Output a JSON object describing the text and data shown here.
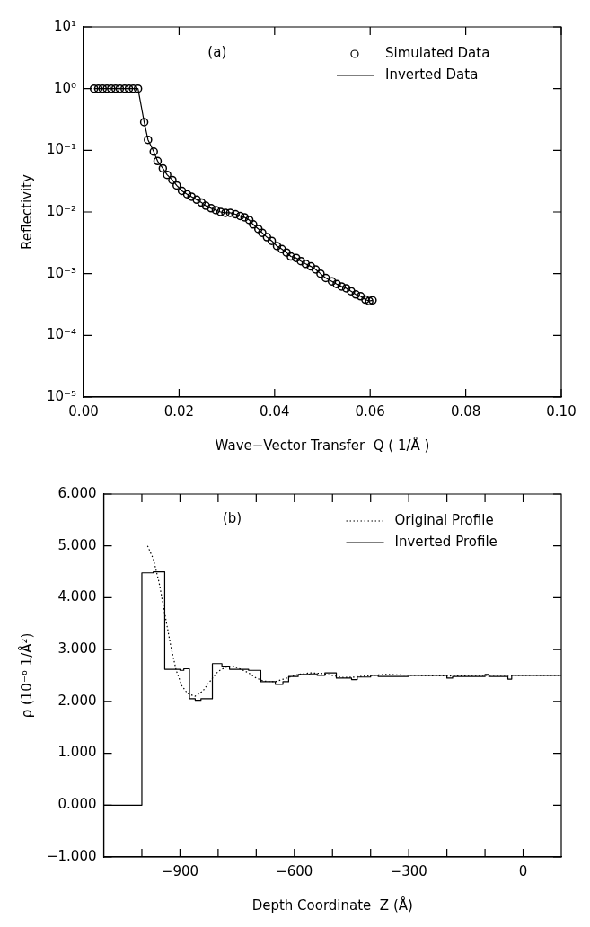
{
  "chart_data": [
    {
      "type": "scatter",
      "xlabel": "Wave−Vector Transfer  Q ( 1/Å )",
      "ylabel": "Reflectivity",
      "annotations": [
        "(a)"
      ],
      "log": "y",
      "grid": false,
      "legend": "top right",
      "xlim": [
        0,
        0.1
      ],
      "xticks": [
        {
          "value": 0,
          "label": "0.00"
        },
        {
          "value": 0.02,
          "label": "0.02"
        },
        {
          "value": 0.04,
          "label": "0.04"
        },
        {
          "value": 0.06,
          "label": "0.06"
        },
        {
          "value": 0.08,
          "label": "0.08"
        },
        {
          "value": 0.1,
          "label": "0.10"
        }
      ],
      "ylim": [
        1e-05,
        10
      ],
      "yticks": [
        {
          "value": 1e-05,
          "label": "10⁻⁵"
        },
        {
          "value": 0.0001,
          "label": "10⁻⁴"
        },
        {
          "value": 0.001,
          "label": "10⁻³"
        },
        {
          "value": 0.01,
          "label": "10⁻²"
        },
        {
          "value": 0.1,
          "label": "10⁻¹"
        },
        {
          "value": 1,
          "label": "10⁰"
        },
        {
          "value": 10,
          "label": "10¹"
        }
      ],
      "x": [
        0.0022,
        0.0031,
        0.004,
        0.0049,
        0.0058,
        0.0067,
        0.0076,
        0.0086,
        0.0095,
        0.0104,
        0.0114,
        0.0127,
        0.0135,
        0.0147,
        0.0155,
        0.0166,
        0.0175,
        0.0186,
        0.0195,
        0.0206,
        0.0217,
        0.0226,
        0.0237,
        0.0247,
        0.0256,
        0.0267,
        0.0277,
        0.0287,
        0.0297,
        0.0307,
        0.0318,
        0.0328,
        0.0337,
        0.0347,
        0.0355,
        0.0366,
        0.0374,
        0.0384,
        0.0394,
        0.0405,
        0.0415,
        0.0425,
        0.0434,
        0.0445,
        0.0455,
        0.0465,
        0.0476,
        0.0486,
        0.0496,
        0.0507,
        0.052,
        0.053,
        0.054,
        0.055,
        0.056,
        0.057,
        0.058,
        0.059,
        0.0598,
        0.0605
      ],
      "series": [
        {
          "name": "Simulated Data",
          "marker": "circle",
          "color": "#000000",
          "values": [
            1,
            1,
            1,
            1,
            1,
            1,
            1,
            1,
            1,
            1,
            1,
            0.286,
            0.148,
            0.095,
            0.067,
            0.051,
            0.04,
            0.033,
            0.027,
            0.022,
            0.0194,
            0.0177,
            0.0158,
            0.0142,
            0.0126,
            0.0115,
            0.0107,
            0.01,
            0.0097,
            0.0097,
            0.0092,
            0.0086,
            0.0082,
            0.0074,
            0.0063,
            0.0053,
            0.0046,
            0.0039,
            0.0034,
            0.0028,
            0.0025,
            0.0022,
            0.0019,
            0.0018,
            0.0016,
            0.00144,
            0.00131,
            0.00117,
            0.001,
            0.00085,
            0.00075,
            0.00068,
            0.00062,
            0.00058,
            0.00052,
            0.00046,
            0.00043,
            0.00038,
            0.00036,
            0.00037
          ]
        },
        {
          "name": "Inverted Data",
          "type": "line",
          "marker": "none",
          "line_style": "solid",
          "color": "#000000",
          "values": [
            1,
            1,
            1,
            1,
            1,
            1,
            1,
            1,
            1,
            1,
            1,
            0.286,
            0.148,
            0.095,
            0.067,
            0.051,
            0.04,
            0.033,
            0.027,
            0.022,
            0.0194,
            0.0177,
            0.0158,
            0.0142,
            0.0126,
            0.0115,
            0.0107,
            0.01,
            0.0097,
            0.0097,
            0.0092,
            0.0086,
            0.0082,
            0.0074,
            0.0063,
            0.0053,
            0.0046,
            0.0039,
            0.0034,
            0.0028,
            0.0025,
            0.0022,
            0.0019,
            0.0018,
            0.0016,
            0.00144,
            0.00131,
            0.00117,
            0.001,
            0.00085,
            0.00075,
            0.00068,
            0.00062,
            0.00058,
            0.00052,
            0.00046,
            0.00043,
            0.00038,
            0.00036,
            0.00037
          ]
        }
      ]
    },
    {
      "type": "line",
      "xlabel": "Depth Coordinate  Z (Å)",
      "ylabel": "ρ (10⁻⁶ 1/Å²)",
      "annotations": [
        "(b)"
      ],
      "grid": false,
      "legend": "top right",
      "xlim": [
        -1100,
        100
      ],
      "xticks": [
        {
          "value": -1000,
          "label": null
        },
        {
          "value": -900,
          "label": "−900"
        },
        {
          "value": -800,
          "label": null
        },
        {
          "value": -700,
          "label": null
        },
        {
          "value": -600,
          "label": "−600"
        },
        {
          "value": -500,
          "label": null
        },
        {
          "value": -400,
          "label": null
        },
        {
          "value": -300,
          "label": "−300"
        },
        {
          "value": -200,
          "label": null
        },
        {
          "value": -100,
          "label": null
        },
        0
      ],
      "ylim": [
        -1,
        6
      ],
      "yticks": [
        {
          "value": -1,
          "label": "−1.000"
        },
        {
          "value": 0,
          "label": "0.000"
        },
        {
          "value": 1,
          "label": "1.000"
        },
        {
          "value": 2,
          "label": "2.000"
        },
        {
          "value": 3,
          "label": "3.000"
        },
        {
          "value": 4,
          "label": "4.000"
        },
        {
          "value": 5,
          "label": "5.000"
        },
        {
          "value": 6,
          "label": "6.000"
        }
      ],
      "series": [
        {
          "name": "Original Profile",
          "line_style": "dotted",
          "marker": "none",
          "color": "#000000",
          "x": [
            -985,
            -970,
            -955,
            -940,
            -925,
            -910,
            -895,
            -880,
            -860,
            -840,
            -820,
            -800,
            -780,
            -760,
            -740,
            -720,
            -700,
            -680,
            -650,
            -620,
            -590,
            -560,
            -530,
            -500,
            -470,
            -440,
            -400,
            -360,
            -320,
            -280,
            -200,
            -100,
            0,
            100
          ],
          "values": [
            5.0,
            4.75,
            4.3,
            3.7,
            3.1,
            2.6,
            2.3,
            2.15,
            2.1,
            2.2,
            2.4,
            2.58,
            2.66,
            2.68,
            2.62,
            2.55,
            2.45,
            2.39,
            2.38,
            2.45,
            2.52,
            2.55,
            2.54,
            2.5,
            2.46,
            2.47,
            2.5,
            2.52,
            2.51,
            2.5,
            2.49,
            2.5,
            2.5,
            2.5
          ]
        },
        {
          "name": "Inverted Profile",
          "type": "step",
          "line_style": "solid",
          "marker": "none",
          "color": "#000000",
          "x": [
            -1100,
            -1000,
            -970,
            -940,
            -900,
            -890,
            -875,
            -860,
            -845,
            -815,
            -790,
            -770,
            -720,
            -688,
            -650,
            -630,
            -615,
            -590,
            -560,
            -540,
            -520,
            -490,
            -450,
            -435,
            -400,
            -380,
            -300,
            -200,
            -185,
            -100,
            -90,
            -40,
            -30,
            100
          ],
          "values": [
            0,
            4.48,
            4.5,
            2.62,
            2.6,
            2.63,
            2.05,
            2.02,
            2.05,
            2.73,
            2.68,
            2.62,
            2.6,
            2.38,
            2.33,
            2.38,
            2.48,
            2.52,
            2.53,
            2.5,
            2.55,
            2.45,
            2.42,
            2.47,
            2.5,
            2.48,
            2.5,
            2.45,
            2.48,
            2.52,
            2.48,
            2.43,
            2.5,
            2.5
          ]
        }
      ]
    }
  ]
}
